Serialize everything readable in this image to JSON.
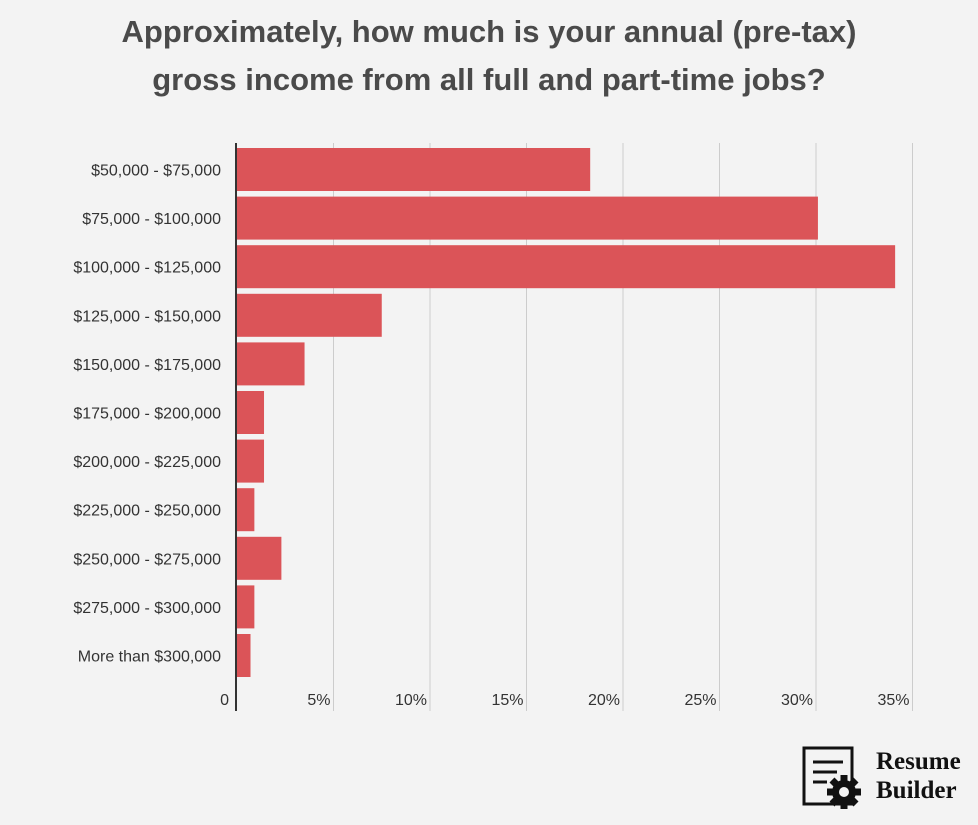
{
  "title_lines": [
    "Approximately, how much is your annual (pre-tax)",
    "gross income from all full and part-time jobs?"
  ],
  "brand": {
    "line1": "Resume",
    "line2": "Builder",
    "icon": "document-gear-icon"
  },
  "colors": {
    "bar": "#db5458",
    "background": "#f3f3f3",
    "grid": "#cccccc",
    "axis": "#333333",
    "text": "#333333"
  },
  "chart_data": {
    "type": "bar",
    "orientation": "horizontal",
    "title": "Approximately, how much is your annual (pre-tax) gross income from all full and part-time jobs?",
    "categories": [
      "$50,000 - $75,000",
      "$75,000 - $100,000",
      "$100,000 - $125,000",
      "$125,000 - $150,000",
      "$150,000 - $175,000",
      "$175,000 - $200,000",
      "$200,000 - $225,000",
      "$225,000 - $250,000",
      "$250,000 - $275,000",
      "$275,000 - $300,000",
      "More than $300,000"
    ],
    "values": [
      18.3,
      30.1,
      34.1,
      7.5,
      3.5,
      1.4,
      1.4,
      0.9,
      2.3,
      0.9,
      0.7
    ],
    "xlim": [
      0,
      35
    ],
    "xticks": [
      0,
      5,
      10,
      15,
      20,
      25,
      30,
      35
    ],
    "xtick_labels": [
      "0",
      "5%",
      "10%",
      "15%",
      "20%",
      "25%",
      "30%",
      "35%"
    ],
    "grid": true,
    "legend": "none"
  }
}
